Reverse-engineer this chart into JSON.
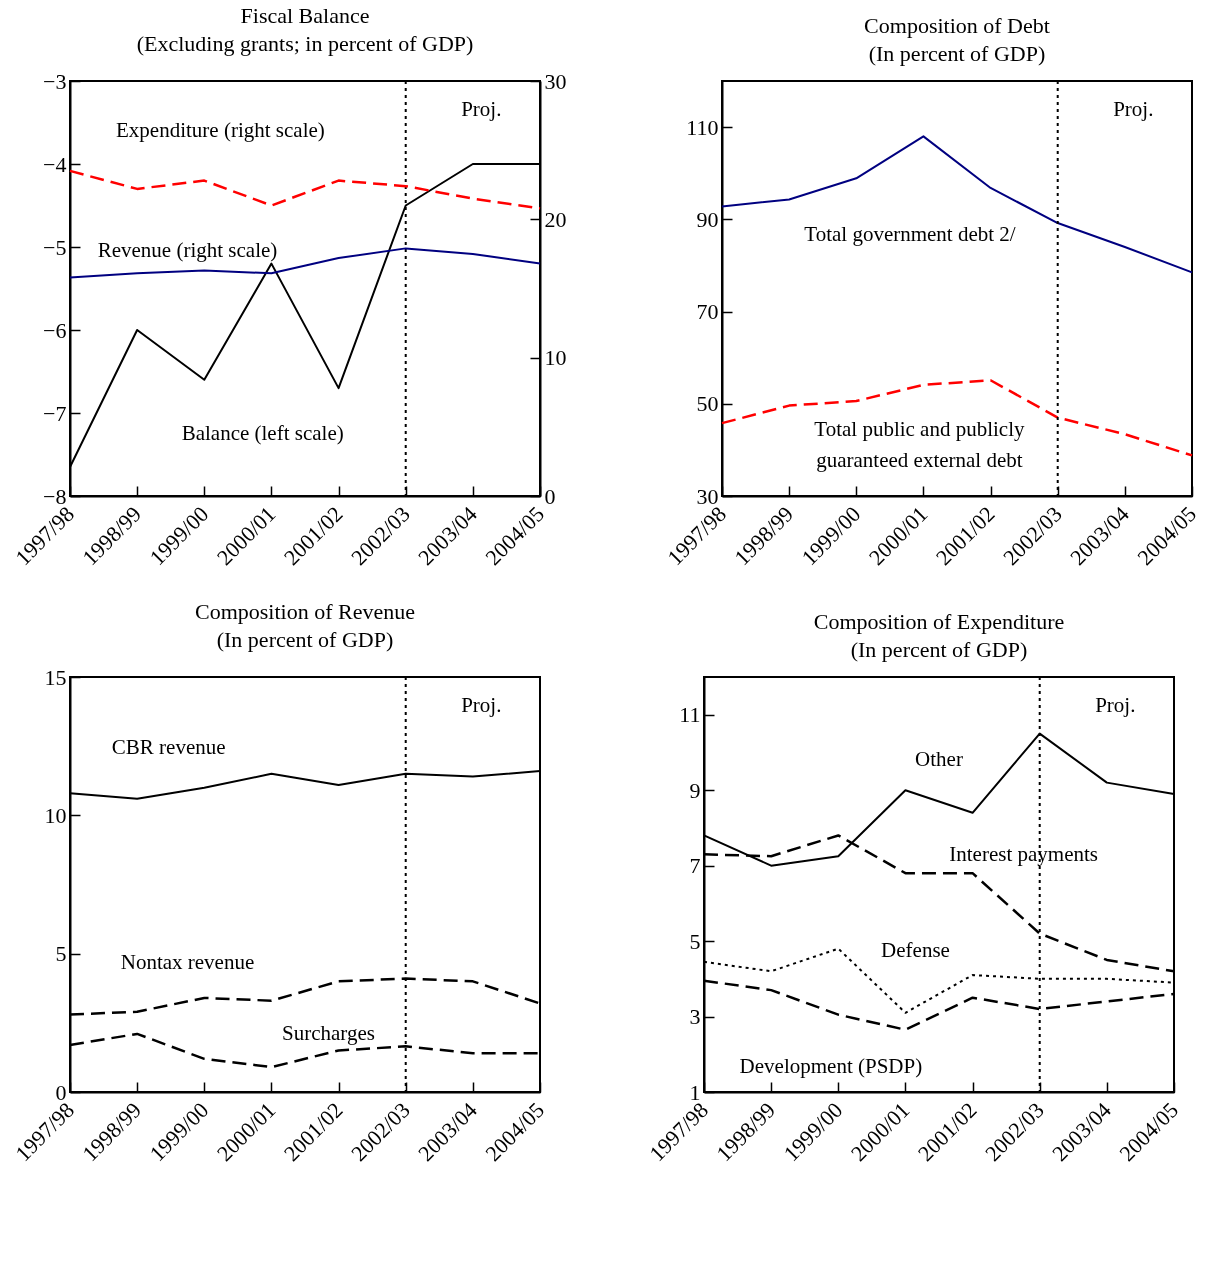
{
  "chart_data": [
    {
      "type": "line",
      "title": "Fiscal Balance",
      "subtitle": "(Excluding grants; in percent of GDP)",
      "categories": [
        "1997/98",
        "1998/99",
        "1999/00",
        "2000/01",
        "2001/02",
        "2002/03",
        "2003/04",
        "2004/05"
      ],
      "ylim": [
        -8,
        -3
      ],
      "yticks": [
        -8,
        -7,
        -6,
        -5,
        -4,
        -3
      ],
      "y2lim": [
        0,
        30
      ],
      "y2ticks": [
        0,
        10,
        20,
        30
      ],
      "grid": false,
      "marker": "none",
      "series": [
        {
          "name": "Balance (left scale)",
          "color": "#000000",
          "line_style": "solid",
          "values": [
            -7.65,
            -6.0,
            -6.6,
            -5.2,
            -6.7,
            -4.5,
            -4.0,
            -4.0
          ]
        },
        {
          "name": "Expenditure (right scale)",
          "color": "#ff0000",
          "line_style": "dashed",
          "axis": "y2",
          "values": [
            23.5,
            22.2,
            22.8,
            21.0,
            22.8,
            22.4,
            21.5,
            20.8
          ]
        },
        {
          "name": "Revenue (right scale)",
          "color": "#000080",
          "line_style": "solid",
          "axis": "y2",
          "values": [
            15.8,
            16.1,
            16.3,
            16.1,
            17.2,
            17.9,
            17.5,
            16.8
          ]
        }
      ],
      "ref_lines": [
        {
          "axis": "x",
          "value": "2002/03",
          "label": "Proj.",
          "line_style": "dotted",
          "color": "#000000"
        }
      ]
    },
    {
      "type": "line",
      "title": "Composition of Debt",
      "subtitle": "(In percent of GDP)",
      "categories": [
        "1997/98",
        "1998/99",
        "1999/00",
        "2000/01",
        "2001/02",
        "2002/03",
        "2003/04",
        "2004/05"
      ],
      "ylim": [
        30,
        120
      ],
      "yticks": [
        30,
        50,
        70,
        90,
        110
      ],
      "grid": false,
      "marker": "none",
      "series": [
        {
          "name": "Total government debt 2/",
          "color": "#000080",
          "line_style": "solid",
          "values": [
            92.8,
            94.3,
            98.9,
            108,
            96.8,
            89.2,
            84.0,
            78.5
          ]
        },
        {
          "name": "Total public and publicly guaranteed external debt",
          "color": "#ff0000",
          "line_style": "dashed",
          "values": [
            45.8,
            49.6,
            50.6,
            54.1,
            55.1,
            47.0,
            43.4,
            38.8
          ]
        }
      ],
      "ref_lines": [
        {
          "axis": "x",
          "value": "2002/03",
          "label": "Proj.",
          "line_style": "dotted",
          "color": "#000000"
        }
      ]
    },
    {
      "type": "line",
      "title": "Composition of Revenue",
      "subtitle": "(In percent of GDP)",
      "categories": [
        "1997/98",
        "1998/99",
        "1999/00",
        "2000/01",
        "2001/02",
        "2002/03",
        "2003/04",
        "2004/05"
      ],
      "ylim": [
        0,
        15
      ],
      "yticks": [
        0,
        5,
        10,
        15
      ],
      "grid": false,
      "marker": "none",
      "series": [
        {
          "name": "CBR revenue",
          "color": "#000000",
          "line_style": "solid",
          "values": [
            10.8,
            10.6,
            11.0,
            11.5,
            11.1,
            11.5,
            11.4,
            11.6
          ]
        },
        {
          "name": "Nontax  revenue",
          "color": "#000000",
          "line_style": "dashed",
          "values": [
            2.8,
            2.9,
            3.4,
            3.3,
            4.0,
            4.1,
            4.0,
            3.2
          ]
        },
        {
          "name": "Surcharges",
          "color": "#000000",
          "line_style": "dashed",
          "values": [
            1.7,
            2.1,
            1.2,
            0.9,
            1.5,
            1.65,
            1.4,
            1.4
          ]
        }
      ],
      "ref_lines": [
        {
          "axis": "x",
          "value": "2002/03",
          "label": "Proj.",
          "line_style": "dotted",
          "color": "#000000"
        }
      ]
    },
    {
      "type": "line",
      "title": "Composition of Expenditure",
      "subtitle": "(In percent of GDP)",
      "categories": [
        "1997/98",
        "1998/99",
        "1999/00",
        "2000/01",
        "2001/02",
        "2002/03",
        "2003/04",
        "2004/05"
      ],
      "ylim": [
        1,
        12
      ],
      "yticks": [
        1,
        3,
        5,
        7,
        9,
        11
      ],
      "grid": false,
      "marker": "none",
      "series": [
        {
          "name": "Other",
          "color": "#000000",
          "line_style": "solid",
          "values": [
            7.8,
            7.0,
            7.25,
            9.0,
            8.4,
            10.5,
            9.2,
            8.9
          ]
        },
        {
          "name": "Interest payments",
          "color": "#000000",
          "line_style": "dashed",
          "values": [
            7.3,
            7.25,
            7.8,
            6.8,
            6.8,
            5.2,
            4.5,
            4.2
          ]
        },
        {
          "name": "Defense",
          "color": "#000000",
          "line_style": "dotted",
          "values": [
            4.45,
            4.2,
            4.8,
            3.1,
            4.1,
            4.0,
            4.0,
            3.9
          ]
        },
        {
          "name": "Development (PSDP)",
          "color": "#000000",
          "line_style": "dashed",
          "values": [
            3.95,
            3.7,
            3.05,
            2.65,
            3.5,
            3.2,
            3.4,
            3.6
          ]
        }
      ],
      "ref_lines": [
        {
          "axis": "x",
          "value": "2002/03",
          "label": "Proj.",
          "line_style": "dotted",
          "color": "#000000"
        }
      ]
    }
  ]
}
